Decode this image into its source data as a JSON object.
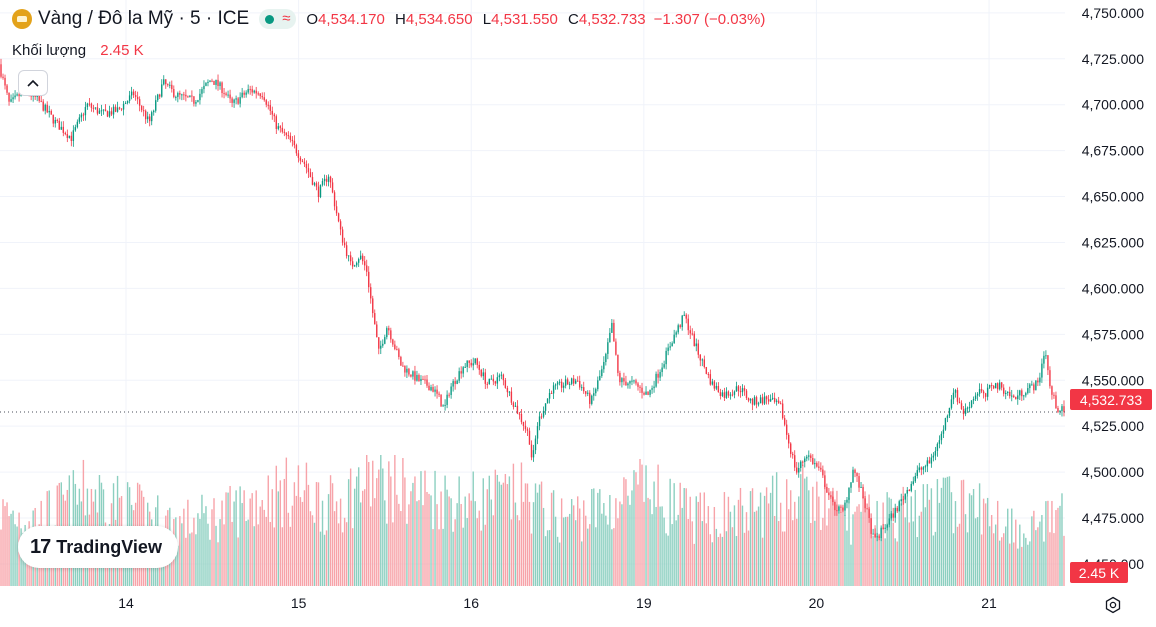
{
  "legend": {
    "symbol": "Vàng / Đô la Mỹ · 5 · ICE",
    "o_label": "O",
    "o_value": "4,534.170",
    "h_label": "H",
    "h_value": "4,534.650",
    "l_label": "L",
    "l_value": "4,531.550",
    "c_label": "C",
    "c_value": "4,532.733",
    "change": "−1.307 (−0.03%)"
  },
  "volume_legend": {
    "label": "Khối lượng",
    "value": "2.45 K"
  },
  "price_tag": "4,532.733",
  "volume_tag": "2.45 K",
  "logo_text": "TradingView",
  "icons": [
    "gold-coin-icon",
    "status-dot-icon",
    "wave-icon",
    "chevron-up-icon",
    "tradingview-logo-icon",
    "settings-icon"
  ],
  "colors": {
    "up": "#089981",
    "down": "#f23645",
    "up_volume": "#8ccfc0",
    "down_volume": "#f7a3a9",
    "grid": "#f0f3fa",
    "text": "#131722"
  },
  "chart_data": {
    "type": "candlestick",
    "symbol": "Vàng / Đô la Mỹ",
    "interval": "5",
    "y_axis": {
      "ticks": [
        4450,
        4475,
        4500,
        4525,
        4550,
        4575,
        4600,
        4625,
        4650,
        4675,
        4700,
        4725,
        4750
      ],
      "tick_labels": [
        "4,450.000",
        "4,475.000",
        "4,500.000",
        "4,525.000",
        "4,550.000",
        "4,575.000",
        "4,600.000",
        "4,625.000",
        "4,650.000",
        "4,675.000",
        "4,700.000",
        "4,725.000",
        "4,750.000"
      ],
      "range": [
        4438,
        4757
      ]
    },
    "x_axis": {
      "ticks": [
        1.0,
        2.0,
        3.0,
        4.0,
        5.0,
        6.0
      ],
      "tick_labels": [
        "14",
        "15",
        "16",
        "19",
        "20",
        "21"
      ],
      "range": [
        0.27,
        6.44
      ]
    },
    "price_path": {
      "x": [
        0.27,
        0.33,
        0.42,
        0.5,
        0.6,
        0.69,
        0.78,
        0.87,
        0.96,
        1.05,
        1.14,
        1.22,
        1.3,
        1.4,
        1.5,
        1.57,
        1.62,
        1.72,
        1.8,
        1.88,
        1.96,
        2.04,
        2.12,
        2.18,
        2.25,
        2.31,
        2.36,
        2.4,
        2.43,
        2.47,
        2.52,
        2.6,
        2.7,
        2.78,
        2.82,
        2.85,
        2.88,
        2.96,
        3.03,
        3.1,
        3.18,
        3.26,
        3.34,
        3.36,
        3.39,
        3.42,
        3.47,
        3.55,
        3.62,
        3.7,
        3.78,
        3.82,
        3.86,
        3.95,
        4.03,
        4.11,
        4.17,
        4.24,
        4.32,
        4.4,
        4.47,
        4.56,
        4.63,
        4.72,
        4.8,
        4.84,
        4.89,
        4.95,
        5.03,
        5.1,
        5.16,
        5.22,
        5.28,
        5.34,
        5.4,
        5.47,
        5.53,
        5.59,
        5.66,
        5.73,
        5.8,
        5.86,
        5.91,
        5.95,
        5.98,
        6.02,
        6.08,
        6.15,
        6.22,
        6.29,
        6.33,
        6.36,
        6.4,
        6.44
      ],
      "y": [
        4722,
        4700,
        4708,
        4702,
        4690,
        4682,
        4700,
        4695,
        4697,
        4706,
        4690,
        4712,
        4705,
        4702,
        4714,
        4708,
        4700,
        4708,
        4706,
        4688,
        4680,
        4668,
        4652,
        4662,
        4630,
        4612,
        4618,
        4610,
        4590,
        4565,
        4580,
        4558,
        4550,
        4546,
        4540,
        4534,
        4545,
        4558,
        4560,
        4548,
        4552,
        4536,
        4520,
        4505,
        4526,
        4534,
        4545,
        4548,
        4550,
        4538,
        4560,
        4580,
        4550,
        4548,
        4542,
        4558,
        4572,
        4585,
        4565,
        4548,
        4542,
        4546,
        4538,
        4540,
        4535,
        4518,
        4500,
        4510,
        4500,
        4482,
        4478,
        4502,
        4485,
        4462,
        4470,
        4480,
        4490,
        4500,
        4505,
        4520,
        4545,
        4532,
        4540,
        4545,
        4540,
        4548,
        4546,
        4540,
        4545,
        4548,
        4568,
        4545,
        4535,
        4533
      ]
    },
    "last_close": 4532.733,
    "last_volume": "2.45 K",
    "volume_pane": {
      "label": "Khối lượng",
      "volume_path": {
        "x": [
          0.27,
          0.5,
          0.8,
          1.0,
          1.3,
          1.6,
          1.8,
          2.0,
          2.2,
          2.4,
          2.6,
          2.8,
          3.0,
          3.3,
          3.5,
          3.8,
          4.0,
          4.3,
          4.6,
          4.9,
          5.2,
          5.5,
          5.8,
          6.0,
          6.2,
          6.44
        ],
        "value": [
          2.6,
          2.4,
          3.4,
          2.8,
          2.2,
          2.6,
          3.2,
          3.4,
          2.8,
          3.8,
          3.4,
          3.2,
          3.0,
          3.2,
          2.4,
          2.8,
          3.4,
          2.4,
          2.6,
          3.2,
          2.4,
          2.6,
          3.0,
          2.6,
          2.0,
          2.45
        ]
      }
    },
    "grid": true,
    "legend_position": "top-left"
  }
}
